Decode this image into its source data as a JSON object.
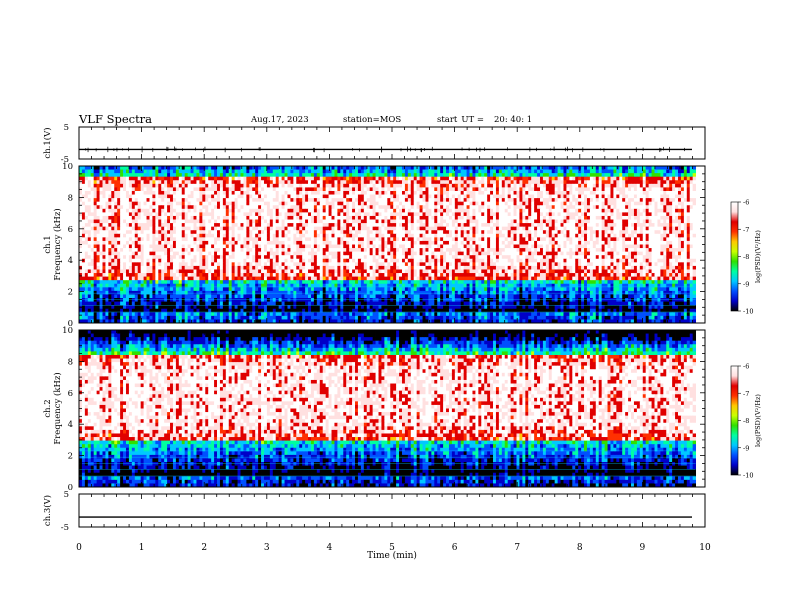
{
  "header": {
    "title": "VLF Spectra",
    "date": "Aug.17, 2023",
    "station": "station=MOS",
    "start_label": "start",
    "start_ut": "UT =",
    "start_time": "20: 40: 1"
  },
  "chart_data": [
    {
      "type": "line",
      "panel": "ch1-waveform",
      "ylabel": "ch.1(V)",
      "ylim": [
        -5,
        5
      ],
      "yticks": [
        "5",
        "-5"
      ],
      "x": [
        0,
        10
      ],
      "series": [
        {
          "values": [
            -2,
            -2
          ]
        }
      ]
    },
    {
      "type": "heatmap",
      "panel": "ch1-spectrogram",
      "ylabel_lines": [
        "ch.1",
        "Frequency (kHz)"
      ],
      "ylim": [
        0,
        10
      ],
      "yticks": [
        "0",
        "2",
        "4",
        "6",
        "8",
        "10"
      ],
      "xlim": [
        0,
        9.85
      ],
      "active_band_khz": [
        2.8,
        9.3
      ],
      "colorbar": {
        "label": "log(PSD)(V²/Hz)",
        "range": [
          -10,
          -6
        ],
        "ticks": [
          "-6",
          "-7",
          "-8",
          "-9",
          "-10"
        ],
        "colors": [
          "#000000",
          "#0000c8",
          "#0050ff",
          "#00c8ff",
          "#00ffa0",
          "#30e000",
          "#c8ff00",
          "#ffc800",
          "#ff3000",
          "#e00000",
          "#ffe0e0",
          "#ffffff"
        ]
      }
    },
    {
      "type": "heatmap",
      "panel": "ch2-spectrogram",
      "ylabel_lines": [
        "ch.2",
        "Frequency (kHz)"
      ],
      "ylim": [
        0,
        10
      ],
      "yticks": [
        "0",
        "2",
        "4",
        "6",
        "8",
        "10"
      ],
      "xlim": [
        0,
        9.85
      ],
      "active_band_khz": [
        3.0,
        8.5
      ],
      "colorbar": {
        "label": "log(PSD)(V²/Hz)",
        "range": [
          -10,
          -6
        ],
        "ticks": [
          "-6",
          "-7",
          "-8",
          "-9",
          "-10"
        ],
        "colors": [
          "#000000",
          "#0000c8",
          "#0050ff",
          "#00c8ff",
          "#00ffa0",
          "#30e000",
          "#c8ff00",
          "#ffc800",
          "#ff3000",
          "#e00000",
          "#ffe0e0",
          "#ffffff"
        ]
      }
    },
    {
      "type": "line",
      "panel": "ch3-waveform",
      "ylabel": "ch.3(V)",
      "ylim": [
        -5,
        5
      ],
      "yticks": [
        "5",
        "-5"
      ],
      "x": [
        0,
        10
      ],
      "series": [
        {
          "values": [
            -2,
            -2
          ]
        }
      ]
    }
  ],
  "x_axis": {
    "label": "Time (min)",
    "range": [
      0,
      10
    ],
    "ticks": [
      "0",
      "1",
      "2",
      "3",
      "4",
      "5",
      "6",
      "7",
      "8",
      "9",
      "10"
    ]
  }
}
